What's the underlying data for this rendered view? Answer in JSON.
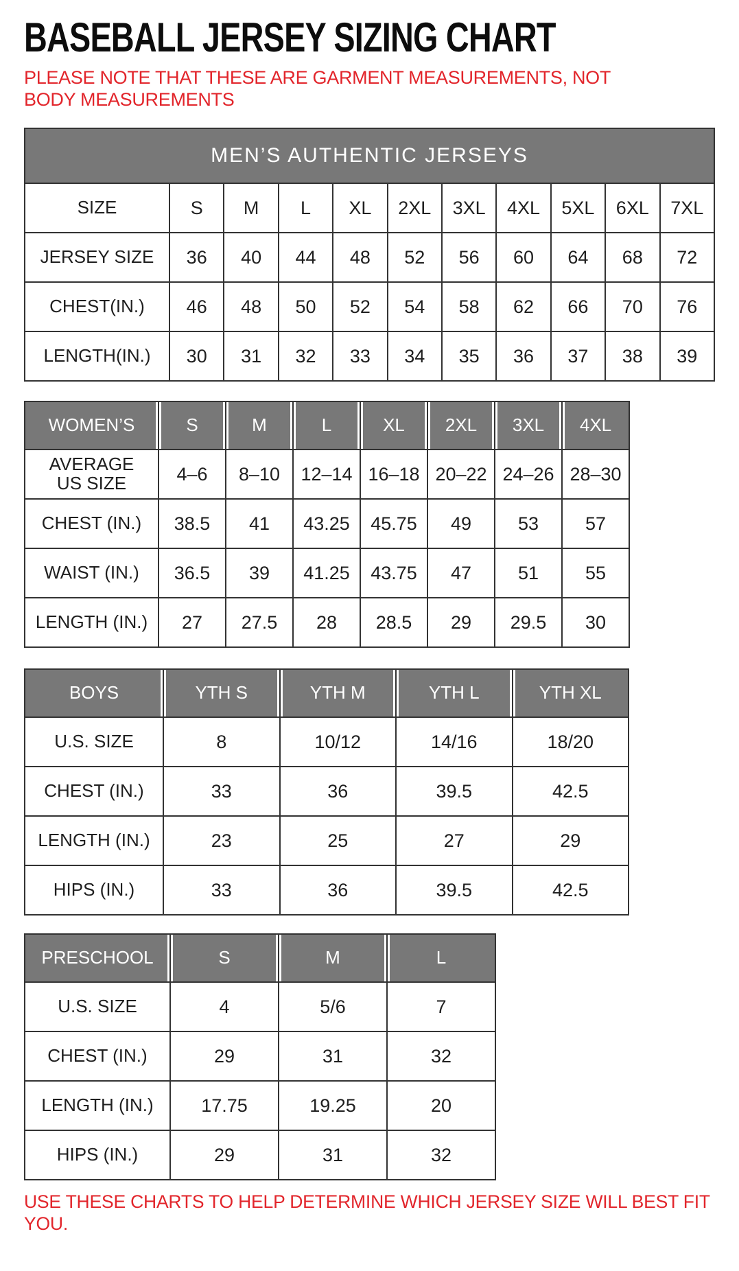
{
  "page": {
    "title": "BASEBALL JERSEY SIZING CHART",
    "note": "PLEASE NOTE THAT THESE ARE GARMENT MEASUREMENTS, NOT BODY MEASUREMENTS",
    "footer": "USE THESE CHARTS TO HELP DETERMINE WHICH JERSEY SIZE WILL BEST FIT YOU.",
    "colors": {
      "accent_red": "#e2252b",
      "header_gray": "#787878",
      "grid_line": "#333333",
      "text_black": "#1f1f1f"
    }
  },
  "chart_data": [
    {
      "type": "table",
      "id": "mens-authentic-jerseys",
      "banner": "MEN’S AUTHENTIC JERSEYS",
      "rows": [
        [
          "SIZE",
          "S",
          "M",
          "L",
          "XL",
          "2XL",
          "3XL",
          "4XL",
          "5XL",
          "6XL",
          "7XL"
        ],
        [
          "JERSEY SIZE",
          "36",
          "40",
          "44",
          "48",
          "52",
          "56",
          "60",
          "64",
          "68",
          "72"
        ],
        [
          "CHEST(IN.)",
          "46",
          "48",
          "50",
          "52",
          "54",
          "58",
          "62",
          "66",
          "70",
          "76"
        ],
        [
          "LENGTH(IN.)",
          "30",
          "31",
          "32",
          "33",
          "34",
          "35",
          "36",
          "37",
          "38",
          "39"
        ]
      ]
    },
    {
      "type": "table",
      "id": "womens",
      "header": [
        "WOMEN’S",
        "S",
        "M",
        "L",
        "XL",
        "2XL",
        "3XL",
        "4XL"
      ],
      "rows": [
        [
          "AVERAGE\nUS SIZE",
          "4–6",
          "8–10",
          "12–14",
          "16–18",
          "20–22",
          "24–26",
          "28–30"
        ],
        [
          "CHEST (IN.)",
          "38.5",
          "41",
          "43.25",
          "45.75",
          "49",
          "53",
          "57"
        ],
        [
          "WAIST (IN.)",
          "36.5",
          "39",
          "41.25",
          "43.75",
          "47",
          "51",
          "55"
        ],
        [
          "LENGTH (IN.)",
          "27",
          "27.5",
          "28",
          "28.5",
          "29",
          "29.5",
          "30"
        ]
      ]
    },
    {
      "type": "table",
      "id": "boys",
      "header": [
        "BOYS",
        "YTH S",
        "YTH M",
        "YTH L",
        "YTH XL"
      ],
      "rows": [
        [
          "U.S. SIZE",
          "8",
          "10/12",
          "14/16",
          "18/20"
        ],
        [
          "CHEST (IN.)",
          "33",
          "36",
          "39.5",
          "42.5"
        ],
        [
          "LENGTH (IN.)",
          "23",
          "25",
          "27",
          "29"
        ],
        [
          "HIPS (IN.)",
          "33",
          "36",
          "39.5",
          "42.5"
        ]
      ]
    },
    {
      "type": "table",
      "id": "preschool",
      "header": [
        "PRESCHOOL",
        "S",
        "M",
        "L"
      ],
      "rows": [
        [
          "U.S. SIZE",
          "4",
          "5/6",
          "7"
        ],
        [
          "CHEST (IN.)",
          "29",
          "31",
          "32"
        ],
        [
          "LENGTH (IN.)",
          "17.75",
          "19.25",
          "20"
        ],
        [
          "HIPS (IN.)",
          "29",
          "31",
          "32"
        ]
      ]
    }
  ]
}
